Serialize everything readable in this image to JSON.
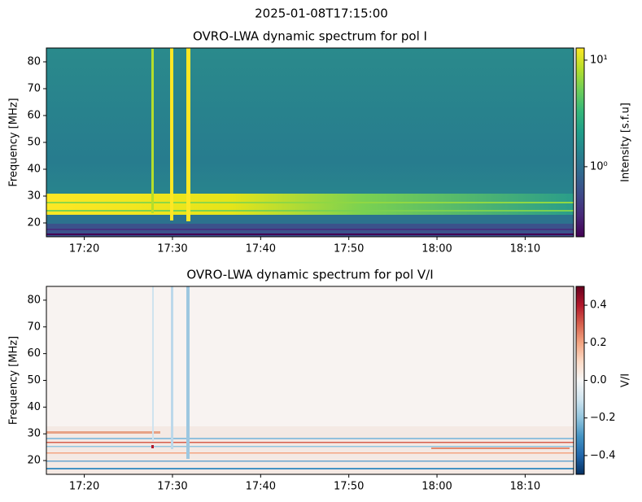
{
  "title": "2025-01-08T17:15:00",
  "chart_data": [
    {
      "type": "heatmap",
      "title": "OVRO-LWA dynamic spectrum for pol I",
      "ylabel": "Frequency [MHz]",
      "xlim": [
        1035.7,
        1095.5
      ],
      "xticks": [
        {
          "value": 1040,
          "label": "17:20"
        },
        {
          "value": 1050,
          "label": "17:30"
        },
        {
          "value": 1060,
          "label": "17:40"
        },
        {
          "value": 1070,
          "label": "17:50"
        },
        {
          "value": 1080,
          "label": "18:00"
        },
        {
          "value": 1090,
          "label": "18:10"
        }
      ],
      "ylim": [
        14.85,
        85.15
      ],
      "yticks": [
        20,
        30,
        40,
        50,
        60,
        70,
        80
      ],
      "colorbar": {
        "label": "Intensity [s.f.u]",
        "scale": "log",
        "colormap": "viridis",
        "lim": [
          0.22,
          13
        ],
        "ticks": [
          {
            "value": 1,
            "label": "10⁰"
          },
          {
            "value": 10,
            "label": "10¹"
          }
        ]
      }
    },
    {
      "type": "heatmap",
      "title": "OVRO-LWA dynamic spectrum for pol V/I",
      "ylabel": "Frequency [MHz]",
      "xlim": [
        1035.7,
        1095.5
      ],
      "xticks": [
        {
          "value": 1040,
          "label": "17:20"
        },
        {
          "value": 1050,
          "label": "17:30"
        },
        {
          "value": 1060,
          "label": "17:40"
        },
        {
          "value": 1070,
          "label": "17:50"
        },
        {
          "value": 1080,
          "label": "18:00"
        },
        {
          "value": 1090,
          "label": "18:10"
        }
      ],
      "ylim": [
        14.85,
        85.15
      ],
      "yticks": [
        20,
        30,
        40,
        50,
        60,
        70,
        80
      ],
      "colorbar": {
        "label": "V/I",
        "scale": "linear",
        "colormap": "RdBu_r",
        "lim": [
          -0.5,
          0.5
        ],
        "ticks": [
          {
            "value": -0.4,
            "label": "−0.4"
          },
          {
            "value": -0.2,
            "label": "−0.2"
          },
          {
            "value": 0,
            "label": "0.0"
          },
          {
            "value": 0.2,
            "label": "0.2"
          },
          {
            "value": 0.4,
            "label": "0.4"
          }
        ]
      }
    }
  ]
}
